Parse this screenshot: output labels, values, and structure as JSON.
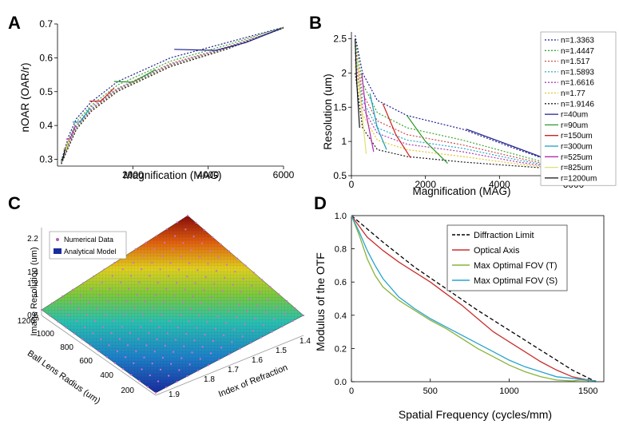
{
  "panels": {
    "a": "A",
    "b": "B",
    "c": "C",
    "d": "D"
  },
  "chart_data": [
    {
      "panel": "A",
      "type": "line",
      "xlabel": "Magnification (MAG)",
      "ylabel": "nOAR (OAR/r)",
      "xlim": [
        0,
        6000
      ],
      "ylim": [
        0.28,
        0.7
      ],
      "xticks": [
        2000,
        4000,
        6000
      ],
      "yticks": [
        0.3,
        0.4,
        0.5,
        0.6,
        0.7
      ],
      "series": [
        {
          "color": "#1f1f8f",
          "dash": true,
          "x": [
            100,
            300,
            500,
            900,
            1600,
            3000,
            4500,
            6000
          ],
          "y": [
            0.295,
            0.37,
            0.42,
            0.47,
            0.53,
            0.6,
            0.645,
            0.69
          ]
        },
        {
          "color": "#3aa832",
          "dash": true,
          "x": [
            100,
            300,
            500,
            900,
            1600,
            3000,
            4500,
            6000
          ],
          "y": [
            0.292,
            0.36,
            0.41,
            0.46,
            0.52,
            0.59,
            0.638,
            0.69
          ]
        },
        {
          "color": "#d44a4a",
          "dash": true,
          "x": [
            100,
            300,
            500,
            900,
            1600,
            3000,
            4500,
            6000
          ],
          "y": [
            0.29,
            0.35,
            0.4,
            0.455,
            0.51,
            0.583,
            0.632,
            0.688
          ]
        },
        {
          "color": "#2aa8c8",
          "dash": true,
          "x": [
            100,
            300,
            500,
            900,
            1600,
            3000,
            4500,
            6000
          ],
          "y": [
            0.29,
            0.345,
            0.395,
            0.45,
            0.508,
            0.58,
            0.63,
            0.688
          ]
        },
        {
          "color": "#b03cb0",
          "dash": true,
          "x": [
            100,
            300,
            500,
            900,
            1600,
            3000,
            4500,
            6000
          ],
          "y": [
            0.288,
            0.342,
            0.392,
            0.447,
            0.505,
            0.578,
            0.628,
            0.688
          ]
        },
        {
          "color": "#e0c830",
          "dash": true,
          "x": [
            100,
            300,
            500,
            900,
            1600,
            3000,
            4500,
            6000
          ],
          "y": [
            0.287,
            0.34,
            0.39,
            0.444,
            0.503,
            0.576,
            0.627,
            0.688
          ]
        },
        {
          "color": "#222222",
          "dash": true,
          "x": [
            100,
            300,
            500,
            900,
            1600,
            3000,
            4500,
            6000
          ],
          "y": [
            0.286,
            0.338,
            0.388,
            0.442,
            0.501,
            0.574,
            0.626,
            0.688
          ]
        },
        {
          "color": "#1f1f8f",
          "dash": false,
          "x": [
            3100,
            4200,
            5000,
            5900
          ],
          "y": [
            0.625,
            0.622,
            0.645,
            0.685
          ]
        },
        {
          "color": "#2a9a2a",
          "dash": false,
          "x": [
            1500,
            2000,
            2600
          ],
          "y": [
            0.53,
            0.528,
            0.565
          ]
        },
        {
          "color": "#d02020",
          "dash": false,
          "x": [
            850,
            1150,
            1500
          ],
          "y": [
            0.472,
            0.472,
            0.51
          ]
        },
        {
          "color": "#1a9cc0",
          "dash": false,
          "x": [
            400,
            600,
            850
          ],
          "y": [
            0.41,
            0.41,
            0.45
          ]
        },
        {
          "color": "#b02cb0",
          "dash": false,
          "x": [
            230,
            330,
            480
          ],
          "y": [
            0.36,
            0.36,
            0.4
          ]
        },
        {
          "color": "#d8c020",
          "dash": false,
          "x": [
            150,
            230,
            300
          ],
          "y": [
            0.33,
            0.33,
            0.36
          ]
        },
        {
          "color": "#111111",
          "dash": false,
          "x": [
            100,
            140,
            200
          ],
          "y": [
            0.3,
            0.3,
            0.33
          ]
        }
      ]
    },
    {
      "panel": "B",
      "type": "line",
      "xlabel": "Magnification (MAG)",
      "ylabel": "Resolution (um)",
      "xlim": [
        0,
        6000
      ],
      "ylim": [
        0.5,
        2.6
      ],
      "xticks": [
        0,
        2000,
        4000,
        6000
      ],
      "yticks": [
        0.5,
        1,
        1.5,
        2,
        2.5
      ],
      "legend_position": "right",
      "legend": [
        "n=1.3363",
        "n=1.4447",
        "n=1.517",
        "n=1.5893",
        "n=1.6616",
        "n=1.77",
        "n=1.9146",
        "r=40um",
        "r=90um",
        "r=150um",
        "r=300um",
        "r=525um",
        "r=825um",
        "r=1200um"
      ],
      "legend_colors": [
        "#1f1f8f",
        "#3aa832",
        "#d44a4a",
        "#2aa8c8",
        "#b03cb0",
        "#e0c830",
        "#222222",
        "#1f1f8f",
        "#2a9a2a",
        "#d02020",
        "#1a9cc0",
        "#b02cb0",
        "#e0e070",
        "#111111"
      ],
      "legend_dash": [
        true,
        true,
        true,
        true,
        true,
        true,
        true,
        false,
        false,
        false,
        false,
        false,
        false,
        false
      ],
      "series": [
        {
          "color": "#1f1f8f",
          "dash": true,
          "x": [
            100,
            300,
            700,
            1500,
            3000,
            4500,
            6000
          ],
          "y": [
            2.55,
            2.0,
            1.6,
            1.38,
            1.18,
            0.88,
            0.6
          ]
        },
        {
          "color": "#3aa832",
          "dash": true,
          "x": [
            100,
            300,
            700,
            1500,
            3000,
            4500,
            6000
          ],
          "y": [
            2.5,
            1.85,
            1.42,
            1.2,
            1.02,
            0.8,
            0.58
          ]
        },
        {
          "color": "#d44a4a",
          "dash": true,
          "x": [
            100,
            300,
            700,
            1500,
            3000,
            4500,
            6000
          ],
          "y": [
            2.4,
            1.7,
            1.3,
            1.1,
            0.95,
            0.76,
            0.58
          ]
        },
        {
          "color": "#2aa8c8",
          "dash": true,
          "x": [
            100,
            300,
            700,
            1500,
            3000,
            4500,
            6000
          ],
          "y": [
            2.3,
            1.6,
            1.2,
            1.02,
            0.9,
            0.73,
            0.58
          ]
        },
        {
          "color": "#b03cb0",
          "dash": true,
          "x": [
            100,
            300,
            700,
            1500,
            3000,
            4500,
            6000
          ],
          "y": [
            2.2,
            1.5,
            1.12,
            0.96,
            0.85,
            0.7,
            0.58
          ]
        },
        {
          "color": "#e0c830",
          "dash": true,
          "x": [
            100,
            300,
            700,
            1500,
            3000,
            4500,
            6000
          ],
          "y": [
            2.1,
            1.4,
            1.02,
            0.88,
            0.78,
            0.67,
            0.58
          ]
        },
        {
          "color": "#222222",
          "dash": true,
          "x": [
            100,
            300,
            700,
            1500,
            3000,
            4500,
            6000
          ],
          "y": [
            2.0,
            1.2,
            0.88,
            0.78,
            0.7,
            0.64,
            0.58
          ]
        },
        {
          "color": "#1f1f8f",
          "dash": false,
          "x": [
            3100,
            4000,
            5000,
            5900
          ],
          "y": [
            1.18,
            1.0,
            0.8,
            0.6
          ]
        },
        {
          "color": "#2a9a2a",
          "dash": false,
          "x": [
            1500,
            2000,
            2600
          ],
          "y": [
            1.38,
            1.0,
            0.68
          ]
        },
        {
          "color": "#d02020",
          "dash": false,
          "x": [
            850,
            1200,
            1600
          ],
          "y": [
            1.55,
            1.1,
            0.76
          ]
        },
        {
          "color": "#1a9cc0",
          "dash": false,
          "x": [
            500,
            700,
            950
          ],
          "y": [
            1.7,
            1.2,
            0.88
          ]
        },
        {
          "color": "#b02cb0",
          "dash": false,
          "x": [
            280,
            400,
            600
          ],
          "y": [
            2.0,
            1.4,
            0.85
          ]
        },
        {
          "color": "#e0e070",
          "dash": false,
          "x": [
            160,
            250,
            400
          ],
          "y": [
            2.2,
            1.6,
            0.82
          ]
        },
        {
          "color": "#111111",
          "dash": false,
          "x": [
            100,
            140,
            220
          ],
          "y": [
            2.5,
            1.9,
            1.2
          ]
        }
      ]
    },
    {
      "panel": "C",
      "type": "surface",
      "xlabel": "Index of Refraction",
      "ylabel": "Ball Lens Radius (um)",
      "zlabel": "Image Resolution (um)",
      "xticks": [
        1.4,
        1.5,
        1.6,
        1.7,
        1.8,
        1.9
      ],
      "yticks": [
        200,
        400,
        600,
        800,
        1000,
        1200
      ],
      "zticks": [
        0.6,
        1,
        1.2,
        1.4,
        2.2
      ],
      "legend": [
        "Numerical Data",
        "Analytical Model"
      ],
      "legend_colors": [
        "#b060b0",
        "#1a2aa0"
      ]
    },
    {
      "panel": "D",
      "type": "line",
      "xlabel": "Spatial Frequency (cycles/mm)",
      "ylabel": "Modulus of the OTF",
      "xlim": [
        0,
        1600
      ],
      "ylim": [
        0,
        1.0
      ],
      "xticks": [
        0,
        500,
        1000,
        1500
      ],
      "yticks": [
        0.0,
        0.2,
        0.4,
        0.6,
        0.8,
        1.0
      ],
      "ytick_labels": [
        "0.0",
        "0.2",
        "0.4",
        "0.6",
        "0.8",
        "1.0"
      ],
      "legend_position": "top-right",
      "legend": [
        "Diffraction Limit",
        "Optical Axis",
        "Max Optimal FOV (T)",
        "Max Optimal FOV (S)"
      ],
      "legend_colors": [
        "#000000",
        "#c8302e",
        "#8ab43a",
        "#2aa3d0"
      ],
      "legend_dash": [
        true,
        false,
        false,
        false
      ],
      "series": [
        {
          "name": "Diffraction Limit",
          "color": "#000000",
          "dash": true,
          "x": [
            0,
            200,
            400,
            600,
            800,
            1000,
            1200,
            1400,
            1550
          ],
          "y": [
            1.0,
            0.84,
            0.69,
            0.56,
            0.43,
            0.31,
            0.19,
            0.07,
            0.0
          ]
        },
        {
          "name": "Optical Axis",
          "color": "#c8302e",
          "dash": false,
          "x": [
            0,
            100,
            200,
            300,
            400,
            500,
            600,
            700,
            800,
            900,
            1000,
            1100,
            1200,
            1300,
            1400,
            1500,
            1550
          ],
          "y": [
            1.0,
            0.87,
            0.79,
            0.72,
            0.66,
            0.6,
            0.53,
            0.46,
            0.38,
            0.3,
            0.24,
            0.18,
            0.12,
            0.07,
            0.03,
            0.01,
            0.005
          ]
        },
        {
          "name": "Max Optimal FOV (T)",
          "color": "#8ab43a",
          "dash": false,
          "x": [
            0,
            50,
            100,
            150,
            200,
            300,
            400,
            500,
            600,
            700,
            800,
            900,
            1000,
            1100,
            1200,
            1300,
            1400,
            1450,
            1550
          ],
          "y": [
            1.0,
            0.88,
            0.74,
            0.64,
            0.57,
            0.49,
            0.43,
            0.37,
            0.32,
            0.26,
            0.2,
            0.15,
            0.1,
            0.06,
            0.03,
            0.01,
            0.005,
            0.01,
            0.005
          ]
        },
        {
          "name": "Max Optimal FOV (S)",
          "color": "#2aa3d0",
          "dash": false,
          "x": [
            0,
            50,
            100,
            150,
            200,
            300,
            400,
            500,
            600,
            700,
            800,
            900,
            1000,
            1100,
            1200,
            1300,
            1400,
            1500,
            1550
          ],
          "y": [
            1.0,
            0.9,
            0.79,
            0.7,
            0.62,
            0.51,
            0.44,
            0.38,
            0.33,
            0.28,
            0.23,
            0.18,
            0.13,
            0.09,
            0.06,
            0.03,
            0.02,
            0.01,
            0.005
          ]
        }
      ]
    }
  ]
}
